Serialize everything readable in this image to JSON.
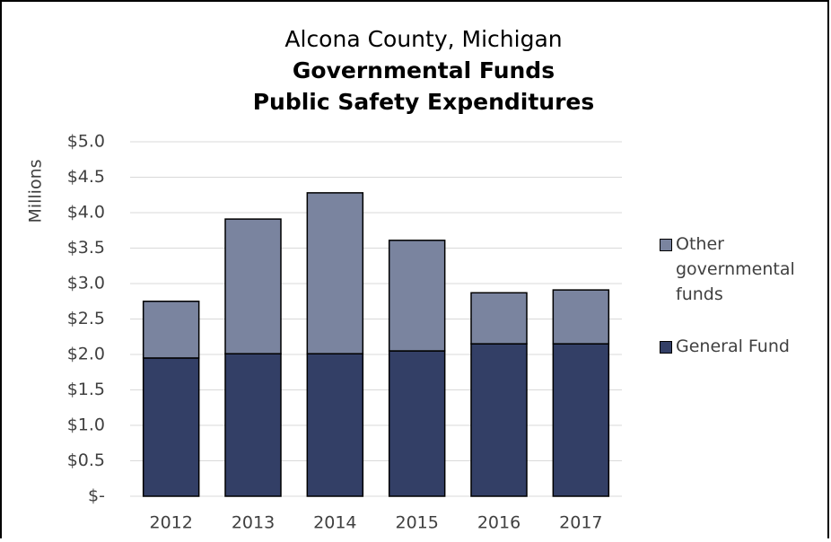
{
  "chart_data": {
    "type": "stacked_bar",
    "title": [
      "Alcona County, Michigan",
      "Governmental Funds",
      "Public Safety Expenditures"
    ],
    "y_label": "Millions",
    "categories": [
      "2012",
      "2013",
      "2014",
      "2015",
      "2016",
      "2017"
    ],
    "series": [
      {
        "name": "General Fund",
        "color": "#333f66",
        "values": [
          1.95,
          2.01,
          2.01,
          2.05,
          2.15,
          2.15
        ]
      },
      {
        "name": "Other governmental funds",
        "color": "#7a849f",
        "values": [
          0.8,
          1.9,
          2.27,
          1.56,
          0.72,
          0.76
        ]
      }
    ],
    "ylim": [
      0,
      5
    ],
    "yticks": [
      {
        "value": 0,
        "label": "$-"
      },
      {
        "value": 0.5,
        "label": "$0.5"
      },
      {
        "value": 1,
        "label": "$1.0"
      },
      {
        "value": 1.5,
        "label": "$1.5"
      },
      {
        "value": 2,
        "label": "$2.0"
      },
      {
        "value": 2.5,
        "label": "$2.5"
      },
      {
        "value": 3,
        "label": "$3.0"
      },
      {
        "value": 3.5,
        "label": "$3.5"
      },
      {
        "value": 4,
        "label": "$4.0"
      },
      {
        "value": 4.5,
        "label": "$4.5"
      },
      {
        "value": 5,
        "label": "$5.0"
      }
    ],
    "grid": true,
    "legend": "right"
  }
}
